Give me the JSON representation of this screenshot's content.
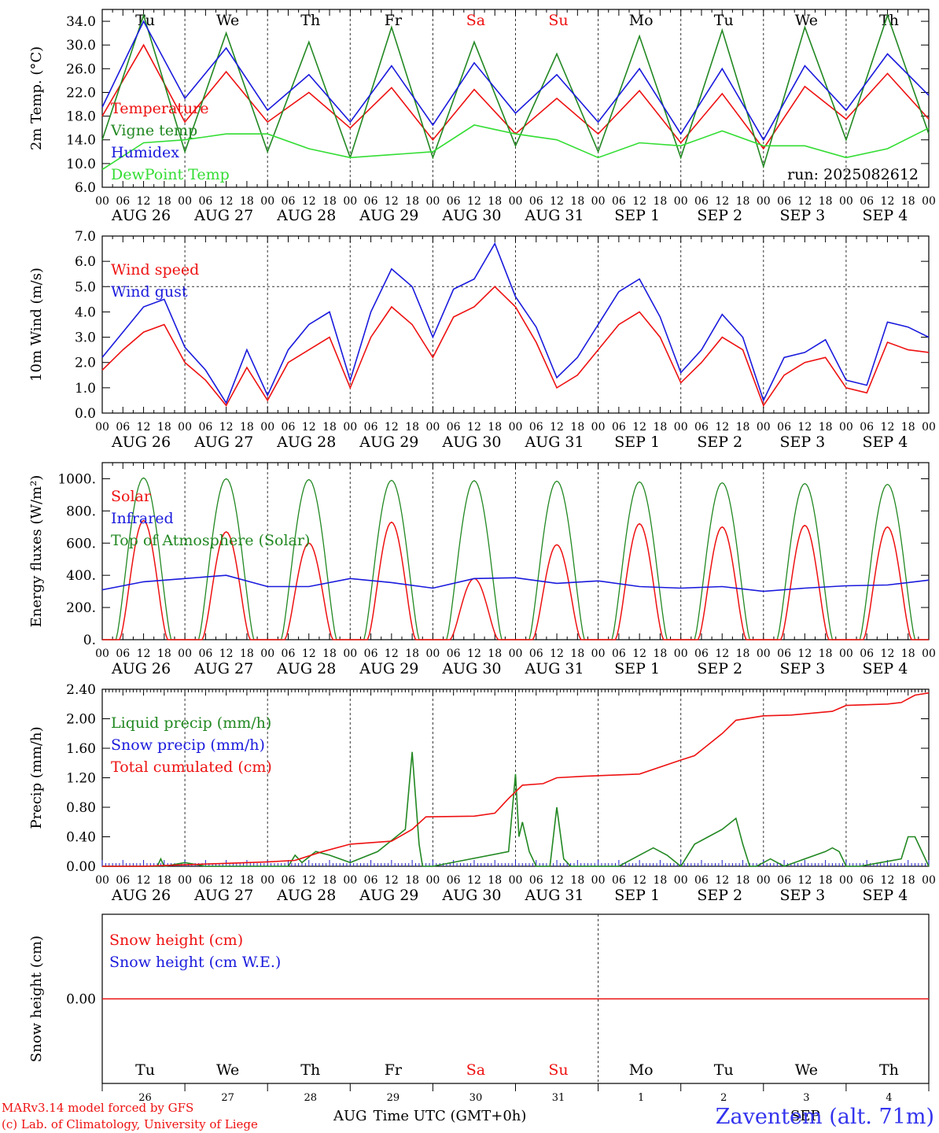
{
  "colors": {
    "red": "#ee1111",
    "green": "#228822",
    "blue": "#1a1add",
    "lightgreen": "#33dd33",
    "axis": "#000000",
    "station": "#3333ee"
  },
  "days": {
    "top_labels": [
      "Tu",
      "We",
      "Th",
      "Fr",
      "Sa",
      "Su",
      "Mo",
      "Tu",
      "We",
      "Th"
    ],
    "weekend_flags": [
      false,
      false,
      false,
      false,
      true,
      true,
      false,
      false,
      false,
      false
    ],
    "date_labels": [
      "AUG 26",
      "AUG 27",
      "AUG 28",
      "AUG 29",
      "AUG 30",
      "AUG 31",
      "SEP  1",
      "SEP  2",
      "SEP  3",
      "SEP  4"
    ],
    "hour_labels": [
      "00",
      "06",
      "12",
      "18"
    ],
    "last_hour_label": "00",
    "bottom_numbers": [
      "26",
      "27",
      "28",
      "29",
      "30",
      "31",
      "1",
      "2",
      "3",
      "4"
    ]
  },
  "footer": {
    "model_line": "MARv3.14 model forced by GFS",
    "lab_line": "(c) Lab. of Climatology, University of Liege",
    "month_left": "AUG",
    "xlabel": "Time UTC (GMT+0h)",
    "month_right": "SEP",
    "station": "Zaventem (alt. 71m)"
  },
  "chart_data": [
    {
      "type": "line",
      "ylabel": "2m Temp. (°C)",
      "ylim": [
        6.0,
        36.0
      ],
      "yticks": [
        "6.0",
        "10.0",
        "14.0",
        "18.0",
        "22.0",
        "26.0",
        "30.0",
        "34.0"
      ],
      "annotation": "run: 2025082612",
      "x_unit": "hours since AUG 26 00 UTC",
      "legend": [
        "Temperature",
        "Vigne temp",
        "Humidex",
        "DewPoint Temp"
      ],
      "series": [
        {
          "name": "Temperature",
          "color": "red",
          "x": [
            0,
            12,
            24,
            36,
            48,
            60,
            72,
            84,
            96,
            108,
            120,
            132,
            144,
            156,
            168,
            180,
            192,
            204,
            216,
            228,
            240
          ],
          "values": [
            18,
            30,
            17,
            25.5,
            17,
            22,
            16,
            22.8,
            14,
            22.5,
            15,
            21,
            15,
            22.3,
            13.5,
            21.8,
            12.5,
            23,
            17.5,
            25.2,
            17.5
          ]
        },
        {
          "name": "Vigne temp",
          "color": "green",
          "x": [
            0,
            12,
            24,
            36,
            48,
            60,
            72,
            84,
            96,
            108,
            120,
            132,
            144,
            156,
            168,
            180,
            192,
            204,
            216,
            228,
            240
          ],
          "values": [
            14,
            35,
            12,
            32,
            12,
            30.5,
            11,
            33,
            11,
            30.5,
            13,
            28.5,
            12,
            31.5,
            11,
            32.5,
            9.5,
            33,
            14,
            35,
            15
          ]
        },
        {
          "name": "Humidex",
          "color": "blue",
          "x": [
            0,
            12,
            24,
            36,
            48,
            60,
            72,
            84,
            96,
            108,
            120,
            132,
            144,
            156,
            168,
            180,
            192,
            204,
            216,
            228,
            240
          ],
          "values": [
            19.5,
            34,
            21,
            29.5,
            19,
            25,
            17,
            26.5,
            16.5,
            27,
            18.5,
            25,
            17,
            26,
            15,
            26,
            14,
            26.5,
            19,
            28.5,
            21.5
          ]
        },
        {
          "name": "DewPoint Temp",
          "color": "lightgreen",
          "x": [
            0,
            12,
            24,
            36,
            48,
            60,
            72,
            84,
            96,
            108,
            120,
            132,
            144,
            156,
            168,
            180,
            192,
            204,
            216,
            228,
            240
          ],
          "values": [
            9,
            13.5,
            14,
            15,
            15,
            12.5,
            11,
            11.5,
            12,
            16.5,
            15,
            14,
            11,
            13.5,
            13,
            15.5,
            13,
            13,
            11,
            12.5,
            16
          ]
        }
      ]
    },
    {
      "type": "line",
      "ylabel": "10m Wind (m/s)",
      "ylim": [
        0.0,
        7.0
      ],
      "yticks": [
        "0.0",
        "1.0",
        "2.0",
        "3.0",
        "4.0",
        "5.0",
        "6.0",
        "7.0"
      ],
      "reference_y": 5.0,
      "legend": [
        "Wind speed",
        "Wind gust"
      ],
      "series": [
        {
          "name": "Wind speed",
          "color": "red",
          "x": [
            0,
            6,
            12,
            18,
            24,
            30,
            36,
            42,
            48,
            54,
            60,
            66,
            72,
            78,
            84,
            90,
            96,
            102,
            108,
            114,
            120,
            126,
            132,
            138,
            144,
            150,
            156,
            162,
            168,
            174,
            180,
            186,
            192,
            198,
            204,
            210,
            216,
            222,
            228,
            234,
            240
          ],
          "values": [
            1.7,
            2.5,
            3.2,
            3.5,
            2,
            1.3,
            0.3,
            1.8,
            0.5,
            2.0,
            2.5,
            3.0,
            1.0,
            3.0,
            4.2,
            3.5,
            2.2,
            3.8,
            4.2,
            5.0,
            4.2,
            2.8,
            1.0,
            1.5,
            2.5,
            3.5,
            4.0,
            3.0,
            1.2,
            2.0,
            3.0,
            2.5,
            0.3,
            1.5,
            2.0,
            2.2,
            1.0,
            0.8,
            2.8,
            2.5,
            2.4
          ]
        },
        {
          "name": "Wind gust",
          "color": "blue",
          "x": [
            0,
            6,
            12,
            18,
            24,
            30,
            36,
            42,
            48,
            54,
            60,
            66,
            72,
            78,
            84,
            90,
            96,
            102,
            108,
            114,
            120,
            126,
            132,
            138,
            144,
            150,
            156,
            162,
            168,
            174,
            180,
            186,
            192,
            198,
            204,
            210,
            216,
            222,
            228,
            234,
            240
          ],
          "values": [
            2.2,
            3.2,
            4.2,
            4.5,
            2.6,
            1.7,
            0.4,
            2.5,
            0.7,
            2.5,
            3.5,
            4.0,
            1.3,
            4.0,
            5.7,
            5.0,
            3.0,
            4.9,
            5.3,
            6.7,
            4.6,
            3.4,
            1.4,
            2.2,
            3.5,
            4.8,
            5.3,
            3.8,
            1.6,
            2.5,
            3.9,
            3.0,
            0.5,
            2.2,
            2.4,
            2.9,
            1.3,
            1.1,
            3.6,
            3.4,
            3.0
          ]
        }
      ]
    },
    {
      "type": "line",
      "ylabel": "Energy fluxes (W/m²)",
      "ylim": [
        0,
        1100
      ],
      "yticks": [
        "0.",
        "200.",
        "400.",
        "600.",
        "800.",
        "1000."
      ],
      "legend": [
        "Solar",
        "Infrared",
        "Top of Atmosphere (Solar)"
      ],
      "toa_peaks": [
        1005,
        1000,
        995,
        990,
        988,
        985,
        980,
        975,
        970,
        965
      ],
      "solar_peaks": [
        740,
        670,
        600,
        730,
        380,
        590,
        720,
        700,
        710,
        700
      ],
      "series": [
        {
          "name": "Infrared",
          "color": "blue",
          "x": [
            0,
            12,
            24,
            36,
            48,
            60,
            72,
            84,
            96,
            108,
            120,
            132,
            144,
            156,
            168,
            180,
            192,
            204,
            216,
            228,
            240
          ],
          "values": [
            310,
            360,
            380,
            400,
            330,
            330,
            380,
            355,
            320,
            380,
            385,
            350,
            365,
            330,
            320,
            330,
            300,
            320,
            335,
            340,
            370
          ]
        }
      ]
    },
    {
      "type": "line",
      "ylabel": "Precip (mm/h)",
      "ylim": [
        0.0,
        2.4
      ],
      "yticks": [
        "0.00",
        "0.40",
        "0.80",
        "1.20",
        "1.60",
        "2.00",
        "2.40"
      ],
      "legend": [
        "Liquid precip (mm/h)",
        "Snow precip (mm/h)",
        "Total cumulated (cm)"
      ],
      "series": [
        {
          "name": "Liquid precip (mm/h)",
          "color": "green",
          "x": [
            0,
            16,
            17,
            18,
            24,
            30,
            54,
            56,
            58,
            62,
            66,
            72,
            80,
            88,
            90,
            92,
            93,
            94,
            96,
            118,
            120,
            121,
            122,
            124,
            126,
            130,
            132,
            134,
            136,
            150,
            156,
            160,
            164,
            168,
            172,
            176,
            180,
            184,
            186,
            188,
            190,
            192,
            194,
            198,
            210,
            212,
            214,
            216,
            220,
            226,
            232,
            234,
            236,
            240
          ],
          "values": [
            0,
            0,
            0.1,
            0,
            0.05,
            0,
            0,
            0.15,
            0.05,
            0.2,
            0.15,
            0.05,
            0.2,
            0.5,
            1.55,
            0.3,
            0,
            0,
            0,
            0.2,
            1.25,
            0.4,
            0.6,
            0.2,
            0,
            0,
            0.8,
            0.1,
            0,
            0,
            0.15,
            0.25,
            0.15,
            0,
            0.3,
            0.4,
            0.5,
            0.65,
            0.3,
            0,
            0,
            0.05,
            0.1,
            0,
            0.2,
            0.25,
            0.2,
            0,
            0,
            0.05,
            0.1,
            0.4,
            0.4,
            0
          ]
        },
        {
          "name": "Total cumulated (cm)",
          "color": "red",
          "x": [
            0,
            12,
            24,
            36,
            48,
            56,
            64,
            72,
            84,
            90,
            94,
            108,
            114,
            118,
            122,
            128,
            132,
            140,
            156,
            168,
            172,
            180,
            184,
            192,
            200,
            212,
            216,
            228,
            232,
            236,
            240
          ],
          "values": [
            0,
            0,
            0.02,
            0.04,
            0.06,
            0.08,
            0.2,
            0.3,
            0.34,
            0.5,
            0.67,
            0.68,
            0.72,
            0.92,
            1.1,
            1.12,
            1.2,
            1.22,
            1.25,
            1.44,
            1.5,
            1.8,
            1.98,
            2.04,
            2.05,
            2.1,
            2.18,
            2.2,
            2.22,
            2.32,
            2.35
          ]
        }
      ]
    },
    {
      "type": "line",
      "ylabel": "Snow height (cm)",
      "ylim": [
        -1,
        1
      ],
      "yticks": [
        "0.00"
      ],
      "legend": [
        "Snow height (cm)",
        "Snow height (cm W.E.)"
      ],
      "series": [
        {
          "name": "Snow height (cm)",
          "color": "red",
          "x": [
            0,
            240
          ],
          "values": [
            0,
            0
          ]
        }
      ]
    }
  ]
}
